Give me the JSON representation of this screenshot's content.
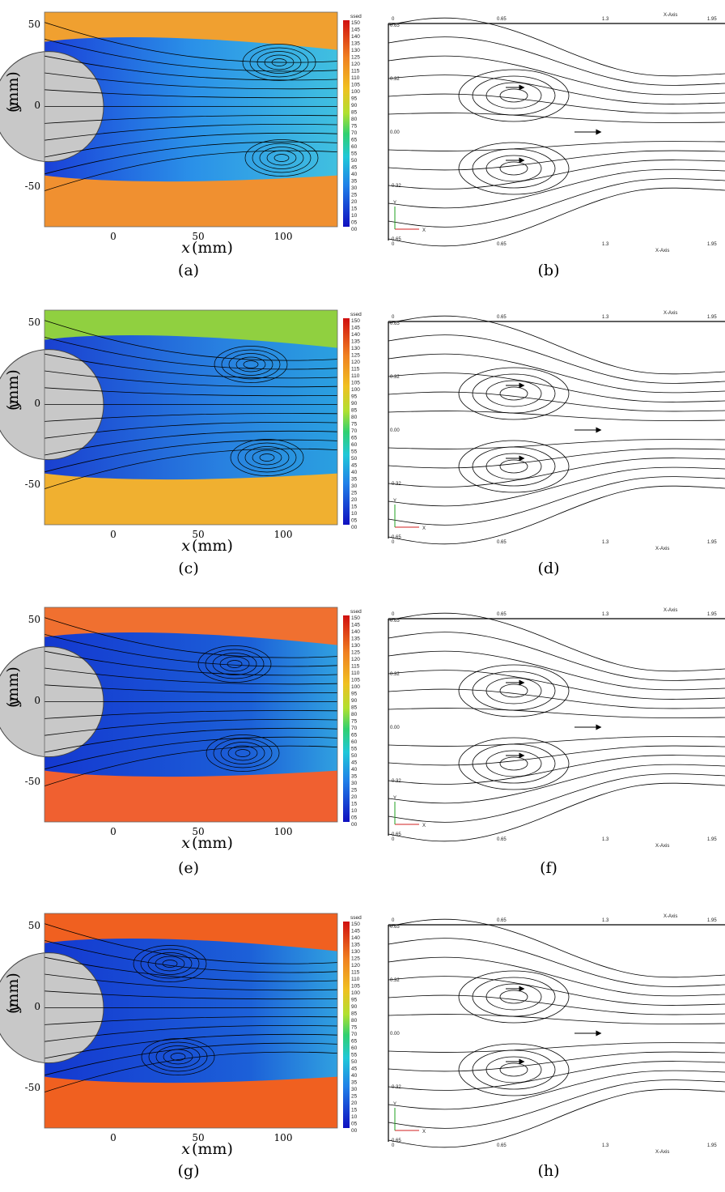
{
  "colors": {
    "cylinder": "#c8c8c8",
    "streamline": "#000000"
  },
  "colorbar": {
    "title": "ssed",
    "levels": [
      "150",
      "145",
      "140",
      "135",
      "130",
      "125",
      "120",
      "115",
      "110",
      "105",
      "100",
      "95",
      "90",
      "85",
      "80",
      "75",
      "70",
      "65",
      "60",
      "55",
      "50",
      "45",
      "40",
      "35",
      "30",
      "25",
      "20",
      "15",
      "10",
      "05",
      "00"
    ]
  },
  "panels": [
    {
      "caption": "(a)",
      "kind": "piv",
      "yticks": [
        "50",
        "0",
        "-50"
      ],
      "xticks": [
        "0",
        "50",
        "100"
      ],
      "ylabel": "y",
      "xlabel": "x",
      "unit": "(mm)"
    },
    {
      "caption": "(b)",
      "kind": "cfd",
      "topticks": [
        "0",
        "0.65",
        "1.3",
        "1.95"
      ],
      "bottomticks": [
        "0",
        "0.65",
        "1.3",
        "1.95"
      ],
      "yticks": [
        "0.65",
        "0.32",
        "0.00",
        "-0.32",
        "-0.65"
      ],
      "xaxis": "X-Axis",
      "yaxis": "Y-Axis",
      "x": "X",
      "y": "Y"
    },
    {
      "caption": "(c)",
      "kind": "piv",
      "yticks": [
        "50",
        "0",
        "-50"
      ],
      "xticks": [
        "0",
        "50",
        "100"
      ],
      "ylabel": "y",
      "xlabel": "x",
      "unit": "(mm)"
    },
    {
      "caption": "(d)",
      "kind": "cfd",
      "topticks": [
        "0",
        "0.65",
        "1.3",
        "1.95"
      ],
      "bottomticks": [
        "0",
        "0.65",
        "1.3",
        "1.95"
      ],
      "yticks": [
        "0.65",
        "0.32",
        "0.00",
        "-0.32",
        "-0.65"
      ],
      "xaxis": "X-Axis",
      "yaxis": "Y-Axis",
      "x": "X",
      "y": "Y"
    },
    {
      "caption": "(e)",
      "kind": "piv",
      "yticks": [
        "50",
        "0",
        "-50"
      ],
      "xticks": [
        "0",
        "50",
        "100"
      ],
      "ylabel": "y",
      "xlabel": "x",
      "unit": "(mm)"
    },
    {
      "caption": "(f)",
      "kind": "cfd",
      "topticks": [
        "0",
        "0.65",
        "1.3",
        "1.95"
      ],
      "bottomticks": [
        "0",
        "0.65",
        "1.3",
        "1.95"
      ],
      "yticks": [
        "0.65",
        "0.32",
        "0.00",
        "-0.32",
        "-0.65"
      ],
      "xaxis": "X-Axis",
      "yaxis": "Y-Axis",
      "x": "X",
      "y": "Y"
    },
    {
      "caption": "(g)",
      "kind": "piv",
      "yticks": [
        "50",
        "0",
        "-50"
      ],
      "xticks": [
        "0",
        "50",
        "100"
      ],
      "ylabel": "y",
      "xlabel": "x",
      "unit": "(mm)"
    },
    {
      "caption": "(h)",
      "kind": "cfd",
      "topticks": [
        "0",
        "0.65",
        "1.3",
        "1.95"
      ],
      "bottomticks": [
        "0",
        "0.65",
        "1.3",
        "1.95"
      ],
      "yticks": [
        "0.65",
        "0.32",
        "0.00",
        "-0.32",
        "-0.65"
      ],
      "xaxis": "X-Axis",
      "yaxis": "Y-Axis",
      "x": "X",
      "y": "Y"
    }
  ]
}
